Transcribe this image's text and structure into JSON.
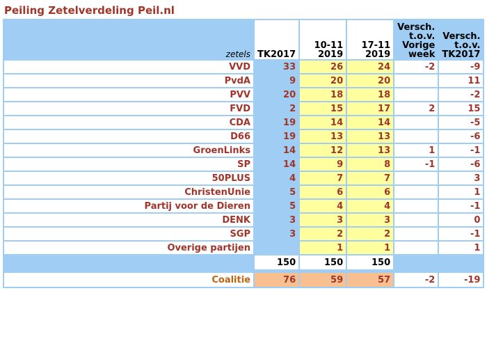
{
  "title": "Peiling Zetelverdeling Peil.nl",
  "header": {
    "label": "zetels",
    "tk2017": "TK2017",
    "col_a_line1": "10-11",
    "col_a_line2": "2019",
    "col_b_line1": "17-11",
    "col_b_line2": "2019",
    "diff_week_l1": "Versch.",
    "diff_week_l2": "t.o.v.",
    "diff_week_l3": "Vorige",
    "diff_week_l4": "week",
    "diff_tk_l1": "Versch.",
    "diff_tk_l2": "t.o.v.",
    "diff_tk_l3": "TK2017"
  },
  "parties": [
    {
      "name": "VVD",
      "tk2017": "33",
      "a": "26",
      "b": "24",
      "dw": "-2",
      "dt": "-9"
    },
    {
      "name": "PvdA",
      "tk2017": "9",
      "a": "20",
      "b": "20",
      "dw": "",
      "dt": "11"
    },
    {
      "name": "PVV",
      "tk2017": "20",
      "a": "18",
      "b": "18",
      "dw": "",
      "dt": "-2"
    },
    {
      "name": "FVD",
      "tk2017": "2",
      "a": "15",
      "b": "17",
      "dw": "2",
      "dt": "15"
    },
    {
      "name": "CDA",
      "tk2017": "19",
      "a": "14",
      "b": "14",
      "dw": "",
      "dt": "-5"
    },
    {
      "name": "D66",
      "tk2017": "19",
      "a": "13",
      "b": "13",
      "dw": "",
      "dt": "-6"
    },
    {
      "name": "GroenLinks",
      "tk2017": "14",
      "a": "12",
      "b": "13",
      "dw": "1",
      "dt": "-1"
    },
    {
      "name": "SP",
      "tk2017": "14",
      "a": "9",
      "b": "8",
      "dw": "-1",
      "dt": "-6"
    },
    {
      "name": "50PLUS",
      "tk2017": "4",
      "a": "7",
      "b": "7",
      "dw": "",
      "dt": "3"
    },
    {
      "name": "ChristenUnie",
      "tk2017": "5",
      "a": "6",
      "b": "6",
      "dw": "",
      "dt": "1"
    },
    {
      "name": "Partij voor de Dieren",
      "tk2017": "5",
      "a": "4",
      "b": "4",
      "dw": "",
      "dt": "-1"
    },
    {
      "name": "DENK",
      "tk2017": "3",
      "a": "3",
      "b": "3",
      "dw": "",
      "dt": "0"
    },
    {
      "name": "SGP",
      "tk2017": "3",
      "a": "2",
      "b": "2",
      "dw": "",
      "dt": "-1"
    },
    {
      "name": "Overige partijen",
      "tk2017": "",
      "a": "1",
      "b": "1",
      "dw": "",
      "dt": "1"
    }
  ],
  "totals": {
    "tk2017": "150",
    "a": "150",
    "b": "150"
  },
  "coalition": {
    "name": "Coalitie",
    "tk2017": "76",
    "a": "59",
    "b": "57",
    "dw": "-2",
    "dt": "-19"
  },
  "colors": {
    "header_blue": "#9fcdf4",
    "yellow": "#ffff9f",
    "orange": "#f8c090",
    "positive": "#1c9a32",
    "negative": "#e0261a",
    "label": "#a0352a"
  }
}
